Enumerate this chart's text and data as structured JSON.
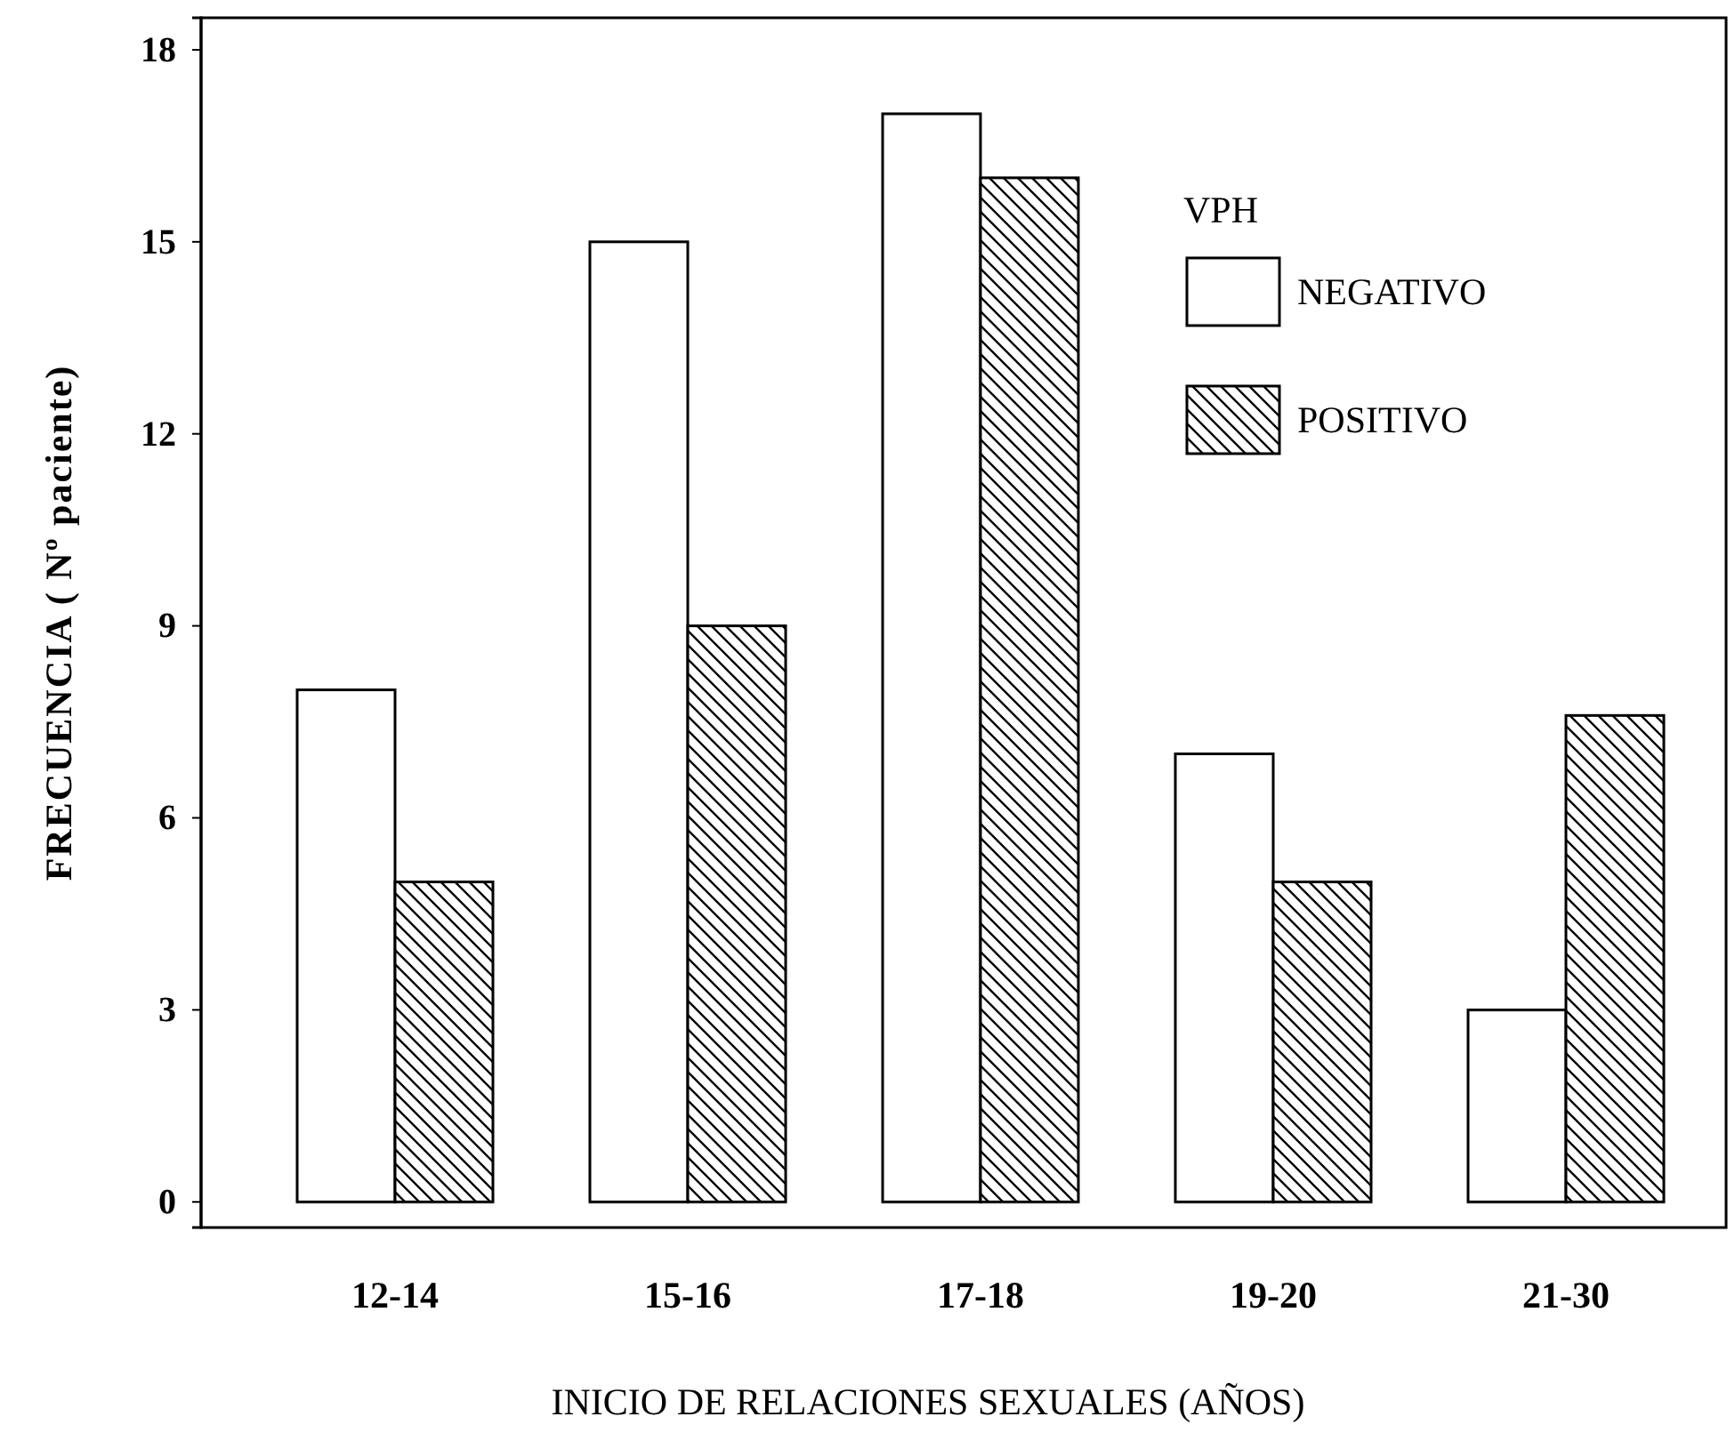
{
  "chart_data": {
    "type": "bar",
    "categories": [
      "12-14",
      "15-16",
      "17-18",
      "19-20",
      "21-30"
    ],
    "series": [
      {
        "name": "NEGATIVO",
        "color": "#ffffff",
        "values": [
          8,
          15,
          17,
          7,
          3
        ]
      },
      {
        "name": "POSITIVO",
        "color": "#000000",
        "values": [
          5,
          9,
          16,
          5,
          7.6
        ]
      }
    ],
    "xlabel": "INICIO DE RELACIONES SEXUALES (AÑOS)",
    "ylabel": "FRECUENCIA ( Nº paciente)",
    "legend_title": "VPH",
    "legend": "top right",
    "ylim": [
      -0.4,
      18.5
    ],
    "yticks": [
      0,
      3,
      6,
      9,
      12,
      15,
      18
    ],
    "grid": false
  }
}
